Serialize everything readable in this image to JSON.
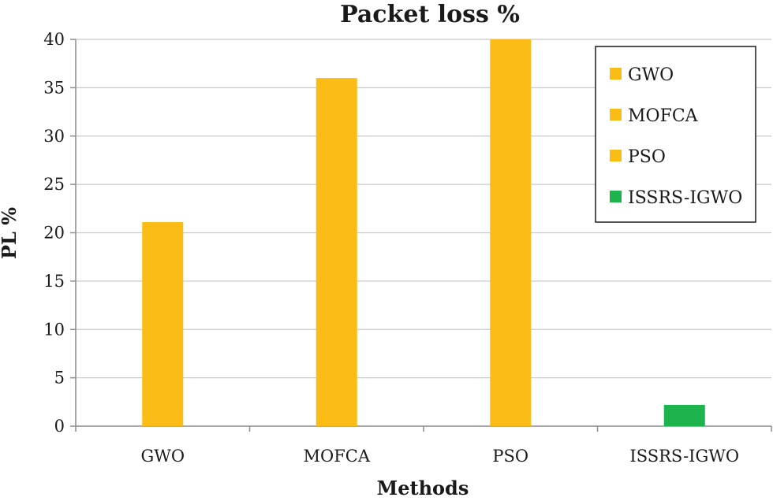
{
  "chart_data": {
    "type": "bar",
    "title": "Packet loss %",
    "xlabel": "Methods",
    "ylabel": "PL %",
    "categories": [
      "GWO",
      "MOFCA",
      "PSO",
      "ISSRS-IGWO"
    ],
    "values": [
      21.1,
      36,
      40,
      2.2
    ],
    "colors": [
      "#fbbd15",
      "#fbbd15",
      "#fbbd15",
      "#1db34d"
    ],
    "ylim": [
      0,
      40
    ],
    "yticks": [
      0,
      5,
      10,
      15,
      20,
      25,
      30,
      35,
      40
    ],
    "grid": true,
    "legend": {
      "position": "top-right",
      "entries": [
        {
          "label": "GWO",
          "color": "#fbbd15"
        },
        {
          "label": "MOFCA",
          "color": "#fbbd15"
        },
        {
          "label": "PSO",
          "color": "#fbbd15"
        },
        {
          "label": "ISSRS-IGWO",
          "color": "#1db34d"
        }
      ]
    }
  }
}
